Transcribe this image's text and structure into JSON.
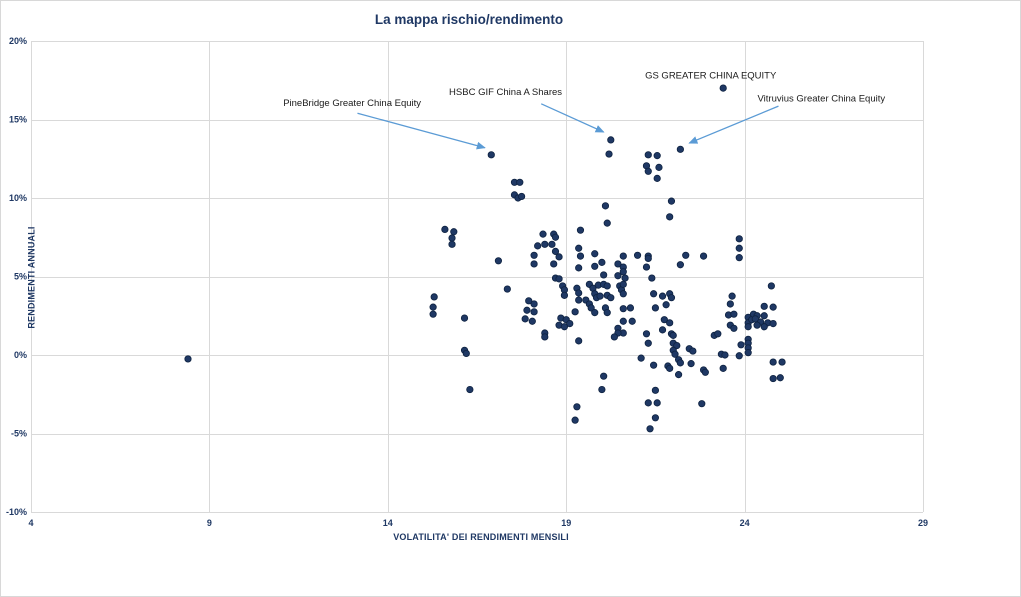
{
  "chart_data": {
    "type": "scatter",
    "title": "La mappa rischio/rendimento",
    "xlabel": "VOLATILITA' DEI RENDIMENTI MENSILI",
    "ylabel": "RENDIMENTI ANNUALI",
    "xlim": [
      4,
      29
    ],
    "ylim": [
      -10,
      20
    ],
    "grid": true,
    "legend": false,
    "x_ticks": [
      {
        "v": 4,
        "label": "4"
      },
      {
        "v": 9,
        "label": "9"
      },
      {
        "v": 14,
        "label": "14"
      },
      {
        "v": 19,
        "label": "19"
      },
      {
        "v": 24,
        "label": "24"
      },
      {
        "v": 29,
        "label": "29"
      }
    ],
    "y_ticks": [
      {
        "v": 20,
        "label": "20%"
      },
      {
        "v": 15,
        "label": "15%"
      },
      {
        "v": 10,
        "label": "10%"
      },
      {
        "v": 5,
        "label": "5%"
      },
      {
        "v": 0,
        "label": "0%"
      },
      {
        "v": -5,
        "label": "-5%"
      },
      {
        "v": -10,
        "label": "-10%"
      }
    ],
    "colors": {
      "point": "#1F3864",
      "point_edge": "#0E2240",
      "grid": "#D9D9D9",
      "axis_text": "#1F3864",
      "annotation_text": "#1A1A1A",
      "arrow": "#5B9BD5"
    },
    "annotations": [
      {
        "label": "PineBridge Greater China Equity",
        "point": [
          16.9,
          12.75
        ],
        "text_xy": [
          13.0,
          16.05
        ],
        "arrow_from": [
          13.15,
          15.4
        ],
        "arrow_to": [
          16.72,
          13.2
        ]
      },
      {
        "label": "HSBC GIF China A Shares",
        "point": [
          20.25,
          13.7
        ],
        "text_xy": [
          17.3,
          16.75
        ],
        "arrow_from": [
          18.3,
          16.0
        ],
        "arrow_to": [
          20.05,
          14.2
        ]
      },
      {
        "label": "GS GREATER CHINA EQUITY",
        "point": [
          23.4,
          17.0
        ],
        "text_xy": [
          23.05,
          17.8
        ],
        "arrow_from": null,
        "arrow_to": null
      },
      {
        "label": "Vitruvius Greater China Equity",
        "point": [
          22.2,
          13.1
        ],
        "text_xy": [
          26.15,
          16.35
        ],
        "arrow_from": [
          24.95,
          15.85
        ],
        "arrow_to": [
          22.45,
          13.5
        ]
      }
    ],
    "points": [
      [
        8.4,
        -0.25
      ],
      [
        15.3,
        3.7
      ],
      [
        15.27,
        3.05
      ],
      [
        15.27,
        2.6
      ],
      [
        15.6,
        8.0
      ],
      [
        15.85,
        7.85
      ],
      [
        15.8,
        7.45
      ],
      [
        15.8,
        7.05
      ],
      [
        16.15,
        2.35
      ],
      [
        16.15,
        0.3
      ],
      [
        16.2,
        0.1
      ],
      [
        16.3,
        -2.2
      ],
      [
        16.9,
        12.75
      ],
      [
        17.55,
        11.0
      ],
      [
        17.7,
        11.0
      ],
      [
        17.55,
        10.2
      ],
      [
        17.65,
        10.0
      ],
      [
        17.75,
        10.1
      ],
      [
        17.1,
        6.0
      ],
      [
        17.35,
        4.2
      ],
      [
        17.95,
        3.45
      ],
      [
        18.1,
        3.25
      ],
      [
        17.9,
        2.85
      ],
      [
        18.1,
        2.75
      ],
      [
        17.85,
        2.3
      ],
      [
        18.05,
        2.15
      ],
      [
        18.35,
        7.7
      ],
      [
        18.65,
        7.7
      ],
      [
        18.7,
        7.5
      ],
      [
        18.2,
        6.95
      ],
      [
        18.4,
        7.05
      ],
      [
        18.6,
        7.05
      ],
      [
        18.1,
        6.35
      ],
      [
        18.7,
        6.6
      ],
      [
        18.8,
        6.25
      ],
      [
        18.1,
        5.8
      ],
      [
        18.65,
        5.8
      ],
      [
        18.7,
        4.9
      ],
      [
        18.8,
        4.85
      ],
      [
        18.9,
        4.4
      ],
      [
        18.95,
        4.15
      ],
      [
        18.95,
        3.8
      ],
      [
        18.85,
        2.35
      ],
      [
        19.0,
        2.25
      ],
      [
        19.1,
        2.0
      ],
      [
        18.8,
        1.9
      ],
      [
        18.95,
        1.8
      ],
      [
        18.4,
        1.4
      ],
      [
        18.4,
        1.15
      ],
      [
        19.35,
        6.8
      ],
      [
        19.4,
        6.3
      ],
      [
        19.35,
        5.55
      ],
      [
        19.4,
        7.95
      ],
      [
        19.8,
        6.45
      ],
      [
        20.0,
        5.9
      ],
      [
        19.8,
        5.65
      ],
      [
        20.05,
        5.1
      ],
      [
        19.3,
        4.25
      ],
      [
        19.35,
        3.95
      ],
      [
        19.65,
        4.5
      ],
      [
        19.75,
        4.25
      ],
      [
        19.9,
        4.45
      ],
      [
        20.05,
        4.5
      ],
      [
        20.15,
        4.4
      ],
      [
        19.8,
        3.9
      ],
      [
        19.85,
        3.65
      ],
      [
        19.95,
        3.75
      ],
      [
        19.55,
        3.5
      ],
      [
        19.65,
        3.25
      ],
      [
        19.35,
        3.5
      ],
      [
        20.15,
        3.8
      ],
      [
        20.25,
        3.65
      ],
      [
        19.25,
        2.75
      ],
      [
        19.7,
        3.0
      ],
      [
        19.8,
        2.7
      ],
      [
        20.1,
        3.0
      ],
      [
        20.15,
        2.7
      ],
      [
        19.35,
        0.9
      ],
      [
        20.45,
        5.8
      ],
      [
        20.45,
        5.05
      ],
      [
        20.65,
        4.9
      ],
      [
        20.5,
        4.4
      ],
      [
        20.55,
        4.15
      ],
      [
        20.6,
        3.9
      ],
      [
        20.8,
        3.0
      ],
      [
        20.6,
        2.95
      ],
      [
        20.85,
        2.15
      ],
      [
        20.6,
        2.15
      ],
      [
        20.6,
        1.4
      ],
      [
        20.45,
        1.7
      ],
      [
        20.45,
        1.4
      ],
      [
        20.35,
        1.15
      ],
      [
        20.25,
        13.7
      ],
      [
        20.2,
        12.8
      ],
      [
        20.1,
        9.5
      ],
      [
        20.15,
        8.4
      ],
      [
        21.3,
        12.75
      ],
      [
        21.55,
        12.7
      ],
      [
        21.25,
        12.05
      ],
      [
        21.3,
        11.7
      ],
      [
        21.6,
        11.95
      ],
      [
        21.55,
        11.25
      ],
      [
        21.95,
        9.8
      ],
      [
        21.9,
        8.8
      ],
      [
        22.2,
        13.1
      ],
      [
        23.4,
        17.0
      ],
      [
        20.6,
        6.3
      ],
      [
        21.0,
        6.35
      ],
      [
        21.3,
        6.3
      ],
      [
        21.3,
        6.15
      ],
      [
        22.35,
        6.35
      ],
      [
        22.85,
        6.3
      ],
      [
        22.2,
        5.75
      ],
      [
        20.6,
        5.6
      ],
      [
        20.6,
        5.3
      ],
      [
        21.25,
        5.6
      ],
      [
        21.4,
        4.9
      ],
      [
        20.6,
        4.5
      ],
      [
        21.45,
        3.9
      ],
      [
        21.7,
        3.75
      ],
      [
        21.9,
        3.9
      ],
      [
        21.95,
        3.65
      ],
      [
        21.5,
        3.0
      ],
      [
        21.8,
        3.2
      ],
      [
        21.75,
        2.25
      ],
      [
        21.9,
        2.05
      ],
      [
        21.7,
        1.6
      ],
      [
        21.95,
        1.35
      ],
      [
        22.0,
        1.25
      ],
      [
        21.25,
        1.35
      ],
      [
        21.3,
        0.75
      ],
      [
        22.0,
        0.75
      ],
      [
        22.1,
        0.6
      ],
      [
        22.0,
        0.3
      ],
      [
        22.05,
        0.05
      ],
      [
        21.1,
        -0.2
      ],
      [
        21.45,
        -0.65
      ],
      [
        21.85,
        -0.7
      ],
      [
        21.9,
        -0.85
      ],
      [
        22.15,
        -0.3
      ],
      [
        22.2,
        -0.5
      ],
      [
        22.15,
        -1.25
      ],
      [
        22.45,
        0.4
      ],
      [
        22.55,
        0.25
      ],
      [
        22.5,
        -0.55
      ],
      [
        22.85,
        -0.95
      ],
      [
        22.9,
        -1.1
      ],
      [
        21.5,
        -2.25
      ],
      [
        21.3,
        -3.05
      ],
      [
        21.55,
        -3.05
      ],
      [
        22.8,
        -3.1
      ],
      [
        21.5,
        -4.0
      ],
      [
        21.35,
        -4.7
      ],
      [
        23.85,
        7.4
      ],
      [
        23.85,
        6.8
      ],
      [
        23.85,
        6.2
      ],
      [
        23.15,
        1.25
      ],
      [
        23.25,
        1.35
      ],
      [
        23.6,
        3.25
      ],
      [
        23.65,
        3.75
      ],
      [
        23.55,
        2.55
      ],
      [
        23.7,
        2.6
      ],
      [
        23.6,
        1.9
      ],
      [
        23.7,
        1.7
      ],
      [
        23.9,
        0.65
      ],
      [
        23.85,
        -0.05
      ],
      [
        23.35,
        0.05
      ],
      [
        23.45,
        0.0
      ],
      [
        23.4,
        -0.85
      ],
      [
        24.1,
        2.4
      ],
      [
        24.1,
        2.05
      ],
      [
        24.2,
        2.25
      ],
      [
        24.25,
        2.6
      ],
      [
        24.1,
        1.8
      ],
      [
        24.35,
        2.5
      ],
      [
        24.3,
        2.3
      ],
      [
        24.45,
        2.1
      ],
      [
        24.35,
        1.9
      ],
      [
        24.55,
        3.1
      ],
      [
        24.8,
        3.05
      ],
      [
        24.55,
        2.5
      ],
      [
        24.65,
        2.05
      ],
      [
        24.8,
        2.0
      ],
      [
        24.55,
        1.8
      ],
      [
        24.1,
        1.0
      ],
      [
        24.1,
        0.75
      ],
      [
        24.1,
        0.45
      ],
      [
        24.1,
        0.15
      ],
      [
        24.75,
        4.4
      ],
      [
        24.8,
        -0.45
      ],
      [
        25.05,
        -0.45
      ],
      [
        24.8,
        -1.5
      ],
      [
        25.0,
        -1.45
      ],
      [
        20.05,
        -1.35
      ],
      [
        20.0,
        -2.2
      ],
      [
        19.3,
        -3.3
      ],
      [
        19.25,
        -4.15
      ]
    ]
  }
}
